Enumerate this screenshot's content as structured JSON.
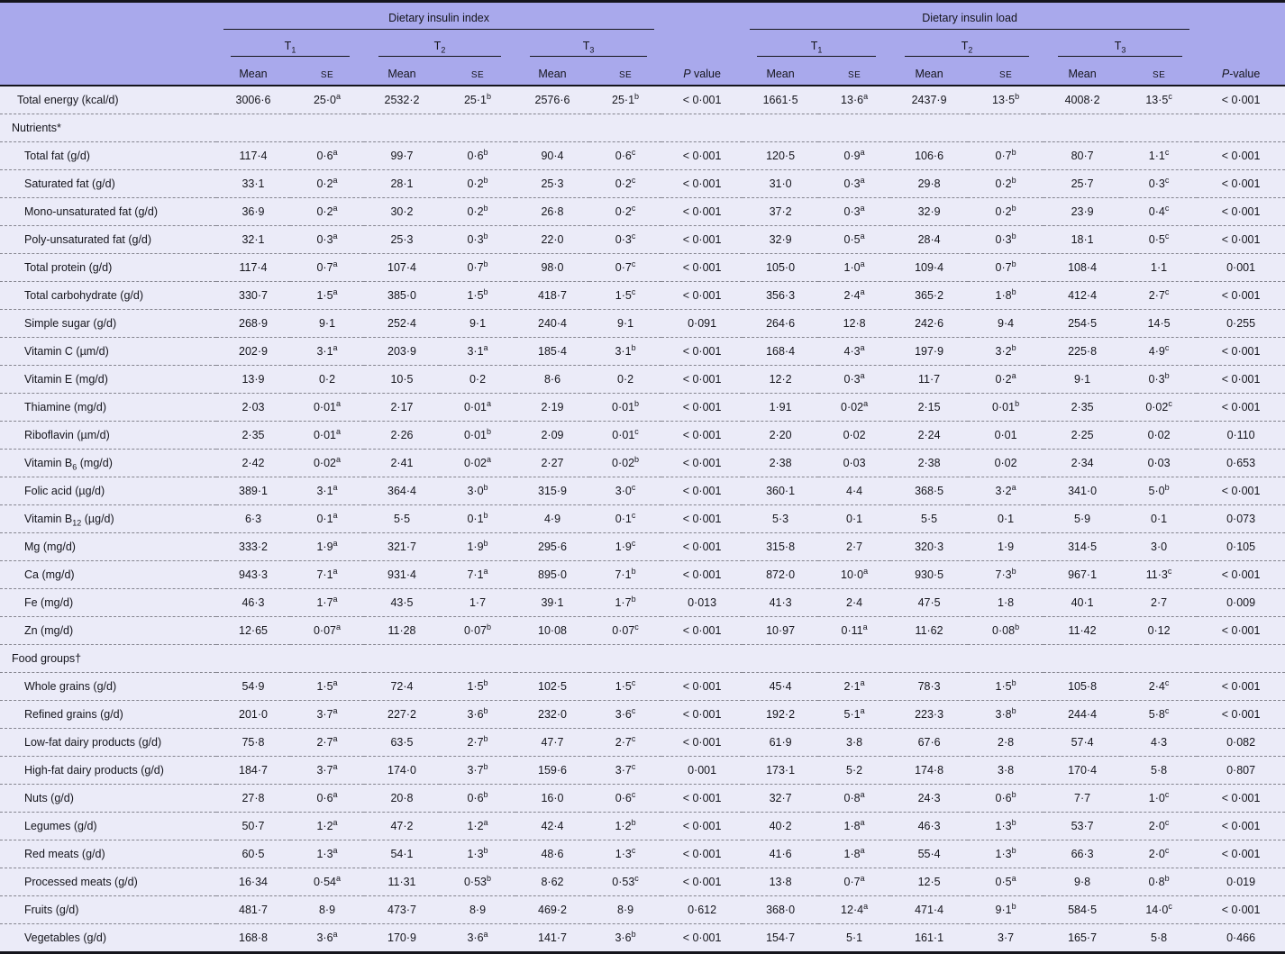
{
  "colors": {
    "header_bg": "#a9a9ec",
    "body_bg": "#ebebf8",
    "border": "#15151c",
    "dash_separator": "#85858f"
  },
  "header": {
    "group1_title": "Dietary insulin index",
    "group2_title": "Dietary insulin load",
    "tertiles": [
      "T~1~",
      "T~2~",
      "T~3~"
    ],
    "mean_label": "Mean",
    "se_label": "SE",
    "p_value_index_label": "*P* value",
    "p_value_load_label": "*P*-value"
  },
  "rows": [
    {
      "type": "data",
      "ind": 1,
      "label": "Total energy (kcal/d)",
      "cells": [
        "3006·6",
        "25·0^a^",
        "2532·2",
        "25·1^b^",
        "2576·6",
        "25·1^b^",
        "< 0·001",
        "1661·5",
        "13·6^a^",
        "2437·9",
        "13·5^b^",
        "4008·2",
        "13·5^c^",
        "< 0·001"
      ]
    },
    {
      "type": "section",
      "label": "Nutrients*"
    },
    {
      "type": "data",
      "ind": 2,
      "label": "Total fat (g/d)",
      "cells": [
        "117·4",
        "0·6^a^",
        "99·7",
        "0·6^b^",
        "90·4",
        "0·6^c^",
        "< 0·001",
        "120·5",
        "0·9^a^",
        "106·6",
        "0·7^b^",
        "80·7",
        "1·1^c^",
        "< 0·001"
      ]
    },
    {
      "type": "data",
      "ind": 2,
      "label": "Saturated fat (g/d)",
      "cells": [
        "33·1",
        "0·2^a^",
        "28·1",
        "0·2^b^",
        "25·3",
        "0·2^c^",
        "< 0·001",
        "31·0",
        "0·3^a^",
        "29·8",
        "0·2^b^",
        "25·7",
        "0·3^c^",
        "< 0·001"
      ]
    },
    {
      "type": "data",
      "ind": 2,
      "label": "Mono-unsaturated fat (g/d)",
      "cells": [
        "36·9",
        "0·2^a^",
        "30·2",
        "0·2^b^",
        "26·8",
        "0·2^c^",
        "< 0·001",
        "37·2",
        "0·3^a^",
        "32·9",
        "0·2^b^",
        "23·9",
        "0·4^c^",
        "< 0·001"
      ]
    },
    {
      "type": "data",
      "ind": 2,
      "label": "Poly-unsaturated fat (g/d)",
      "cells": [
        "32·1",
        "0·3^a^",
        "25·3",
        "0·3^b^",
        "22·0",
        "0·3^c^",
        "< 0·001",
        "32·9",
        "0·5^a^",
        "28·4",
        "0·3^b^",
        "18·1",
        "0·5^c^",
        "< 0·001"
      ]
    },
    {
      "type": "data",
      "ind": 2,
      "label": "Total protein (g/d)",
      "cells": [
        "117·4",
        "0·7^a^",
        "107·4",
        "0·7^b^",
        "98·0",
        "0·7^c^",
        "< 0·001",
        "105·0",
        "1·0^a^",
        "109·4",
        "0·7^b^",
        "108·4",
        "1·1",
        "0·001"
      ]
    },
    {
      "type": "data",
      "ind": 2,
      "label": "Total carbohydrate (g/d)",
      "cells": [
        "330·7",
        "1·5^a^",
        "385·0",
        "1·5^b^",
        "418·7",
        "1·5^c^",
        "< 0·001",
        "356·3",
        "2·4^a^",
        "365·2",
        "1·8^b^",
        "412·4",
        "2·7^c^",
        "< 0·001"
      ]
    },
    {
      "type": "data",
      "ind": 2,
      "label": "Simple sugar (g/d)",
      "cells": [
        "268·9",
        "9·1",
        "252·4",
        "9·1",
        "240·4",
        "9·1",
        "0·091",
        "264·6",
        "12·8",
        "242·6",
        "9·4",
        "254·5",
        "14·5",
        "0·255"
      ]
    },
    {
      "type": "data",
      "ind": 2,
      "label": "Vitamin C (µm/d)",
      "cells": [
        "202·9",
        "3·1^a^",
        "203·9",
        "3·1^a^",
        "185·4",
        "3·1^b^",
        "< 0·001",
        "168·4",
        "4·3^a^",
        "197·9",
        "3·2^b^",
        "225·8",
        "4·9^c^",
        "< 0·001"
      ]
    },
    {
      "type": "data",
      "ind": 2,
      "label": "Vitamin E (mg/d)",
      "cells": [
        "13·9",
        "0·2",
        "10·5",
        "0·2",
        "8·6",
        "0·2",
        "< 0·001",
        "12·2",
        "0·3^a^",
        "11·7",
        "0·2^a^",
        "9·1",
        "0·3^b^",
        "< 0·001"
      ]
    },
    {
      "type": "data",
      "ind": 2,
      "label": "Thiamine (mg/d)",
      "cells": [
        "2·03",
        "0·01^a^",
        "2·17",
        "0·01^a^",
        "2·19",
        "0·01^b^",
        "< 0·001",
        "1·91",
        "0·02^a^",
        "2·15",
        "0·01^b^",
        "2·35",
        "0·02^c^",
        "< 0·001"
      ]
    },
    {
      "type": "data",
      "ind": 2,
      "label": "Riboflavin (µm/d)",
      "cells": [
        "2·35",
        "0·01^a^",
        "2·26",
        "0·01^b^",
        "2·09",
        "0·01^c^",
        "< 0·001",
        "2·20",
        "0·02",
        "2·24",
        "0·01",
        "2·25",
        "0·02",
        "0·110"
      ]
    },
    {
      "type": "data",
      "ind": 2,
      "label": "Vitamin B~6~ (mg/d)",
      "cells": [
        "2·42",
        "0·02^a^",
        "2·41",
        "0·02^a^",
        "2·27",
        "0·02^b^",
        "< 0·001",
        "2·38",
        "0·03",
        "2·38",
        "0·02",
        "2·34",
        "0·03",
        "0·653"
      ]
    },
    {
      "type": "data",
      "ind": 2,
      "label": "Folic acid (µg/d)",
      "cells": [
        "389·1",
        "3·1^a^",
        "364·4",
        "3·0^b^",
        "315·9",
        "3·0^c^",
        "< 0·001",
        "360·1",
        "4·4",
        "368·5",
        "3·2^a^",
        "341·0",
        "5·0^b^",
        "< 0·001"
      ]
    },
    {
      "type": "data",
      "ind": 2,
      "label": "Vitamin B~12~ (µg/d)",
      "cells": [
        "6·3",
        "0·1^a^",
        "5·5",
        "0·1^b^",
        "4·9",
        "0·1^c^",
        "< 0·001",
        "5·3",
        "0·1",
        "5·5",
        "0·1",
        "5·9",
        "0·1",
        "0·073"
      ]
    },
    {
      "type": "data",
      "ind": 2,
      "label": "Mg (mg/d)",
      "cells": [
        "333·2",
        "1·9^a^",
        "321·7",
        "1·9^b^",
        "295·6",
        "1·9^c^",
        "< 0·001",
        "315·8",
        "2·7",
        "320·3",
        "1·9",
        "314·5",
        "3·0",
        "0·105"
      ]
    },
    {
      "type": "data",
      "ind": 2,
      "label": "Ca (mg/d)",
      "cells": [
        "943·3",
        "7·1^a^",
        "931·4",
        "7·1^a^",
        "895·0",
        "7·1^b^",
        "< 0·001",
        "872·0",
        "10·0^a^",
        "930·5",
        "7·3^b^",
        "967·1",
        "11·3^c^",
        "< 0·001"
      ]
    },
    {
      "type": "data",
      "ind": 2,
      "label": "Fe (mg/d)",
      "cells": [
        "46·3",
        "1·7^a^",
        "43·5",
        "1·7",
        "39·1",
        "1·7^b^",
        "0·013",
        "41·3",
        "2·4",
        "47·5",
        "1·8",
        "40·1",
        "2·7",
        "0·009"
      ]
    },
    {
      "type": "data",
      "ind": 2,
      "label": "Zn (mg/d)",
      "cells": [
        "12·65",
        "0·07^a^",
        "11·28",
        "0·07^b^",
        "10·08",
        "0·07^c^",
        "< 0·001",
        "10·97",
        "0·11^a^",
        "11·62",
        "0·08^b^",
        "11·42",
        "0·12",
        "< 0·001"
      ]
    },
    {
      "type": "section",
      "label": "Food groups†"
    },
    {
      "type": "data",
      "ind": 2,
      "label": "Whole grains (g/d)",
      "cells": [
        "54·9",
        "1·5^a^",
        "72·4",
        "1·5^b^",
        "102·5",
        "1·5^c^",
        "< 0·001",
        "45·4",
        "2·1^a^",
        "78·3",
        "1·5^b^",
        "105·8",
        "2·4^c^",
        "< 0·001"
      ]
    },
    {
      "type": "data",
      "ind": 2,
      "label": "Refined grains (g/d)",
      "cells": [
        "201·0",
        "3·7^a^",
        "227·2",
        "3·6^b^",
        "232·0",
        "3·6^c^",
        "< 0·001",
        "192·2",
        "5·1^a^",
        "223·3",
        "3·8^b^",
        "244·4",
        "5·8^c^",
        "< 0·001"
      ]
    },
    {
      "type": "data",
      "ind": 2,
      "label": "Low-fat dairy products (g/d)",
      "cells": [
        "75·8",
        "2·7^a^",
        "63·5",
        "2·7^b^",
        "47·7",
        "2·7^c^",
        "< 0·001",
        "61·9",
        "3·8",
        "67·6",
        "2·8",
        "57·4",
        "4·3",
        "0·082"
      ]
    },
    {
      "type": "data",
      "ind": 2,
      "label": "High-fat dairy products (g/d)",
      "cells": [
        "184·7",
        "3·7^a^",
        "174·0",
        "3·7^b^",
        "159·6",
        "3·7^c^",
        "0·001",
        "173·1",
        "5·2",
        "174·8",
        "3·8",
        "170·4",
        "5·8",
        "0·807"
      ]
    },
    {
      "type": "data",
      "ind": 2,
      "label": "Nuts (g/d)",
      "cells": [
        "27·8",
        "0·6^a^",
        "20·8",
        "0·6^b^",
        "16·0",
        "0·6^c^",
        "< 0·001",
        "32·7",
        "0·8^a^",
        "24·3",
        "0·6^b^",
        "7·7",
        "1·0^c^",
        "< 0·001"
      ]
    },
    {
      "type": "data",
      "ind": 2,
      "label": "Legumes (g/d)",
      "cells": [
        "50·7",
        "1·2^a^",
        "47·2",
        "1·2^a^",
        "42·4",
        "1·2^b^",
        "< 0·001",
        "40·2",
        "1·8^a^",
        "46·3",
        "1·3^b^",
        "53·7",
        "2·0^c^",
        "< 0·001"
      ]
    },
    {
      "type": "data",
      "ind": 2,
      "label": "Red meats (g/d)",
      "cells": [
        "60·5",
        "1·3^a^",
        "54·1",
        "1·3^b^",
        "48·6",
        "1·3^c^",
        "< 0·001",
        "41·6",
        "1·8^a^",
        "55·4",
        "1·3^b^",
        "66·3",
        "2·0^c^",
        "< 0·001"
      ]
    },
    {
      "type": "data",
      "ind": 2,
      "label": "Processed meats (g/d)",
      "cells": [
        "16·34",
        "0·54^a^",
        "11·31",
        "0·53^b^",
        "8·62",
        "0·53^c^",
        "< 0·001",
        "13·8",
        "0·7^a^",
        "12·5",
        "0·5^a^",
        "9·8",
        "0·8^b^",
        "0·019"
      ]
    },
    {
      "type": "data",
      "ind": 2,
      "label": "Fruits (g/d)",
      "cells": [
        "481·7",
        "8·9",
        "473·7",
        "8·9",
        "469·2",
        "8·9",
        "0·612",
        "368·0",
        "12·4^a^",
        "471·4",
        "9·1^b^",
        "584·5",
        "14·0^c^",
        "< 0·001"
      ]
    },
    {
      "type": "data",
      "ind": 2,
      "label": "Vegetables (g/d)",
      "cells": [
        "168·8",
        "3·6^a^",
        "170·9",
        "3·6^a^",
        "141·7",
        "3·6^b^",
        "< 0·001",
        "154·7",
        "5·1",
        "161·1",
        "3·7",
        "165·7",
        "5·8",
        "0·466"
      ]
    }
  ]
}
